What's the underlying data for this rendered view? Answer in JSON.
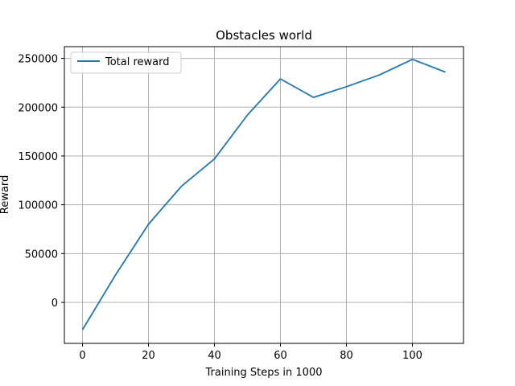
{
  "chart_data": {
    "type": "line",
    "title": "Obstacles world",
    "xlabel": "Training Steps in 1000",
    "ylabel": "Reward",
    "xlim": [
      -5.5,
      115.5
    ],
    "ylim": [
      -42000,
      262000
    ],
    "xticks": [
      0,
      20,
      40,
      60,
      80,
      100
    ],
    "yticks": [
      0,
      50000,
      100000,
      150000,
      200000,
      250000
    ],
    "grid": true,
    "legend_position": "upper-left",
    "series": [
      {
        "name": "Total reward",
        "color": "#1f77b4",
        "x": [
          0,
          10,
          20,
          30,
          40,
          50,
          60,
          70,
          80,
          90,
          100,
          110
        ],
        "y": [
          -28000,
          28000,
          80000,
          119000,
          147000,
          192000,
          229000,
          210000,
          221000,
          233000,
          249000,
          236000
        ]
      }
    ]
  }
}
